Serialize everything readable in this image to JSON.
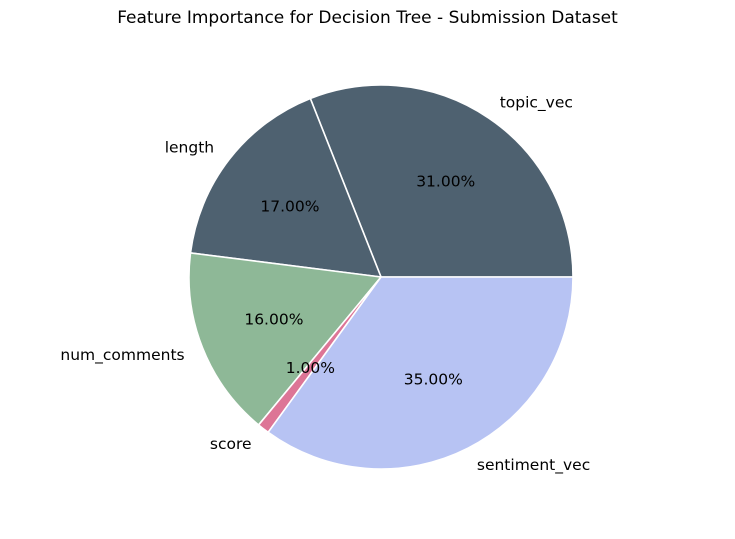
{
  "chart_data": {
    "type": "pie",
    "title": "Feature Importance for Decision Tree - Submission Dataset",
    "slices": [
      {
        "label": "topic_vec",
        "value": 31.0,
        "pct_label": "31.00%",
        "color": "#4e6170"
      },
      {
        "label": "length",
        "value": 17.0,
        "pct_label": "17.00%",
        "color": "#4e6170"
      },
      {
        "label": "num_comments",
        "value": 16.0,
        "pct_label": "16.00%",
        "color": "#8eb897"
      },
      {
        "label": "score",
        "value": 1.0,
        "pct_label": "1.00%",
        "color": "#dd7596"
      },
      {
        "label": "sentiment_vec",
        "value": 35.0,
        "pct_label": "35.00%",
        "color": "#b7c3f3"
      }
    ],
    "start_angle_deg": 0,
    "direction": "counterclockwise",
    "legend": "none"
  }
}
